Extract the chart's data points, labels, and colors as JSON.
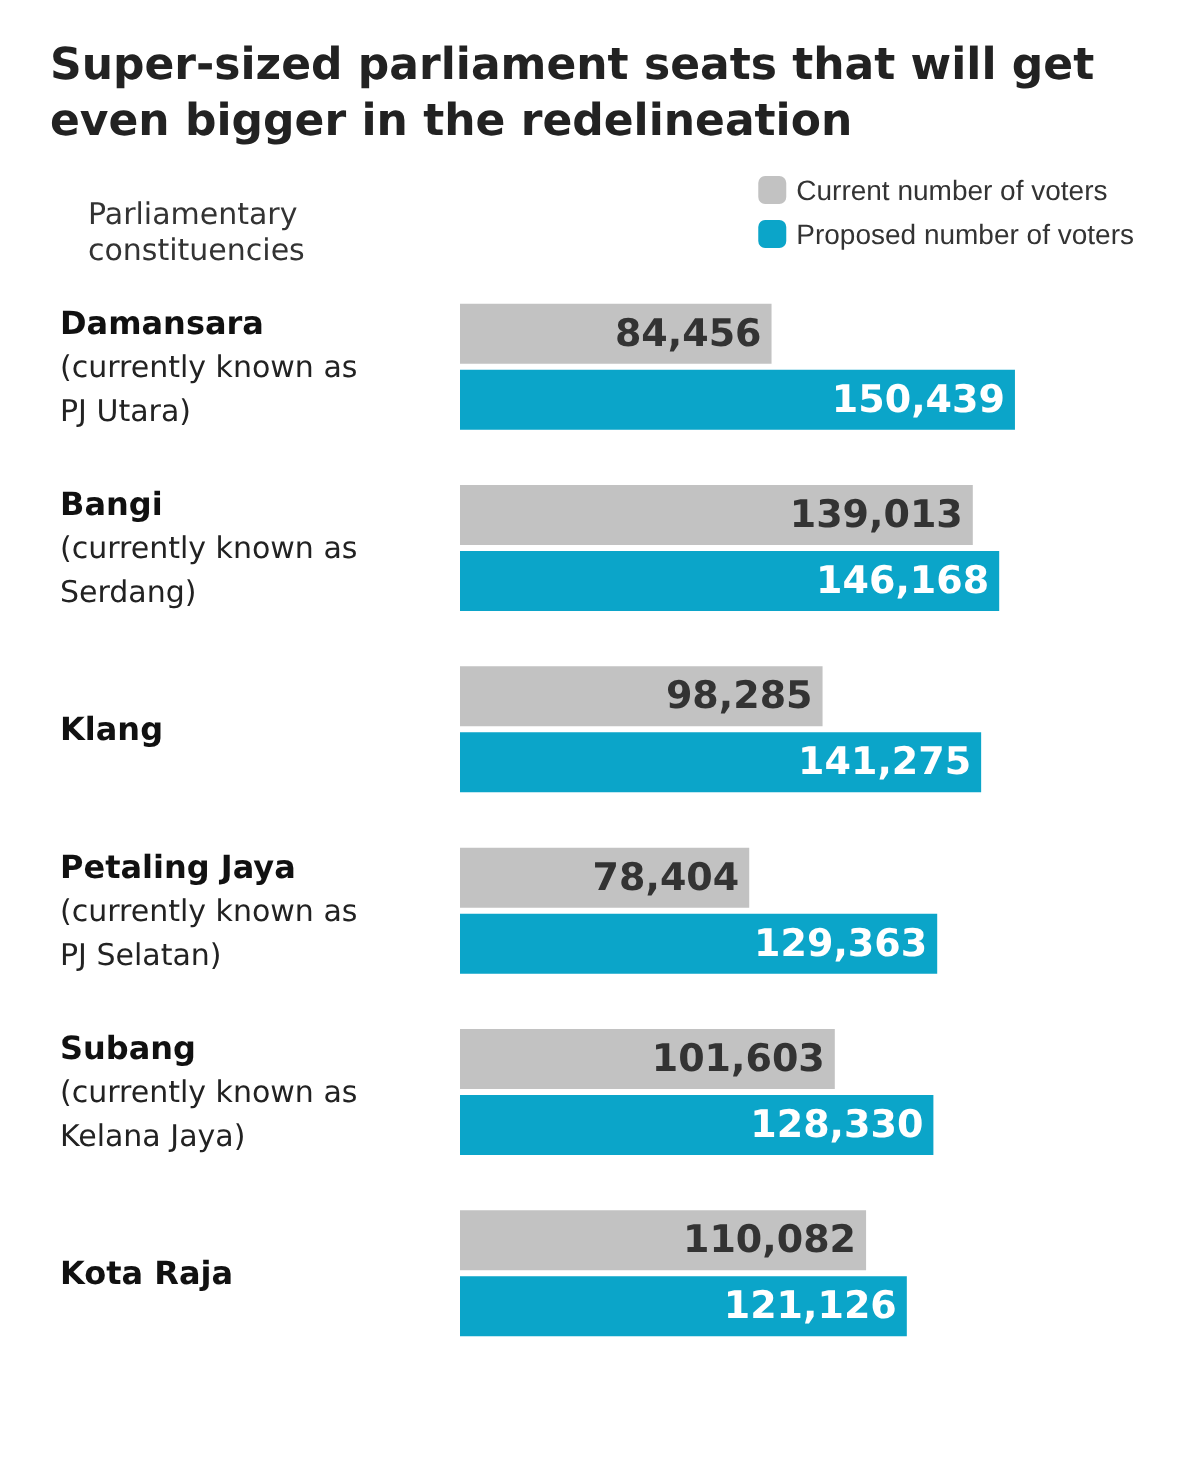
{
  "chart_data": {
    "type": "bar",
    "orientation": "horizontal",
    "title": "Super-sized parliament seats that will get even bigger in the redelineation",
    "ylabel": "Parliamentary\nconstituencies",
    "categories": [
      "Damansara\n(currently known as\nPJ Utara)",
      "Bangi\n(currently known as\nSerdang)",
      "Klang",
      "Petaling Jaya\n(currently known as\nPJ Selatan)",
      "Subang\n(currently known as\nKelana Jaya)",
      "Kota Raja"
    ],
    "series": [
      {
        "name": "Current number of voters",
        "color": "#c2c2c2",
        "values": [
          84456,
          139013,
          98285,
          78404,
          101603,
          110082
        ],
        "value_labels": [
          "84,456",
          "139,013",
          "98,285",
          "78,404",
          "101,603",
          "110,082"
        ]
      },
      {
        "name": "Proposed number of voters",
        "color": "#0ba5c9",
        "values": [
          150439,
          146168,
          141275,
          129363,
          128330,
          121126
        ],
        "value_labels": [
          "150,439",
          "146,168",
          "141,275",
          "129,363",
          "128,330",
          "121,126"
        ]
      }
    ],
    "legend": "top right"
  }
}
